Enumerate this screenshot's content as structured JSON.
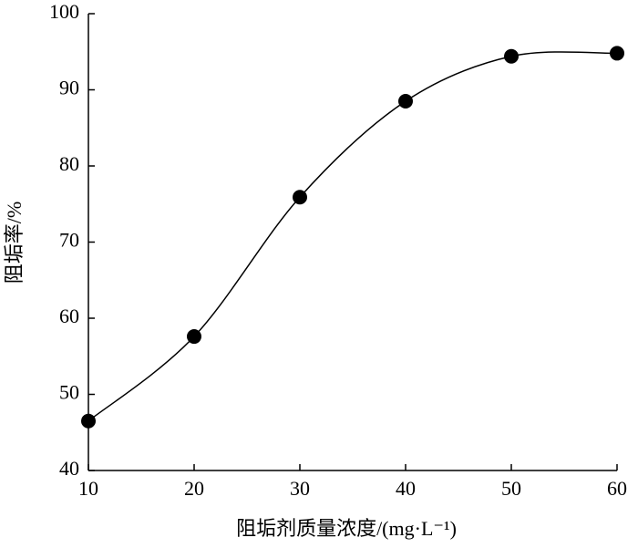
{
  "chart_data": {
    "type": "scatter",
    "xlabel": "阻垢剂质量浓度/(mg·L⁻¹)",
    "ylabel": "阻垢率/%",
    "x": [
      10,
      20,
      30,
      40,
      50,
      60
    ],
    "values": [
      46.5,
      57.6,
      75.9,
      88.5,
      94.4,
      94.8
    ],
    "color": "#000000",
    "smooth_line": true,
    "xlim": [
      10,
      60
    ],
    "xticks": [
      10,
      20,
      30,
      40,
      50,
      60
    ],
    "ylim": [
      40,
      100
    ],
    "yticks": [
      40,
      50,
      60,
      70,
      80,
      90,
      100
    ]
  }
}
